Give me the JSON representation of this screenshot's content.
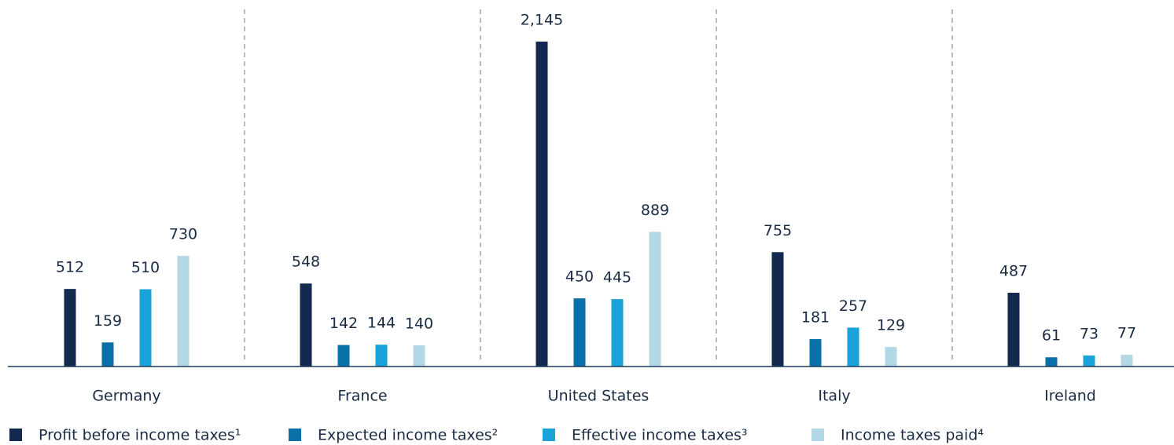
{
  "chart_data": {
    "type": "bar",
    "categories": [
      "Germany",
      "France",
      "United States",
      "Italy",
      "Ireland"
    ],
    "series": [
      {
        "name": "Profit before income taxes¹",
        "color": "#13294f",
        "values": [
          512,
          548,
          2145,
          755,
          487
        ],
        "value_labels": [
          "512",
          "548",
          "2,145",
          "755",
          "487"
        ]
      },
      {
        "name": "Expected income taxes²",
        "color": "#0a70a8",
        "values": [
          159,
          142,
          450,
          181,
          61
        ],
        "value_labels": [
          "159",
          "142",
          "450",
          "181",
          "61"
        ]
      },
      {
        "name": "Effective income taxes³",
        "color": "#1ba2d9",
        "values": [
          510,
          144,
          445,
          257,
          73
        ],
        "value_labels": [
          "510",
          "144",
          "445",
          "257",
          "73"
        ]
      },
      {
        "name": "Income taxes paid⁴",
        "color": "#b3d8e5",
        "values": [
          730,
          140,
          889,
          129,
          77
        ],
        "value_labels": [
          "730",
          "140",
          "889",
          "129",
          "77"
        ]
      }
    ]
  }
}
